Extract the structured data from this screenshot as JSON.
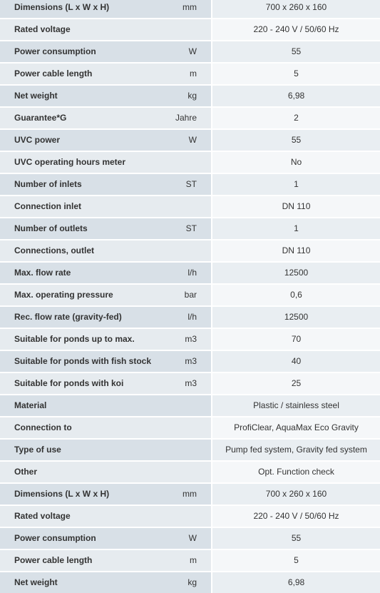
{
  "table": {
    "rows": [
      [
        "Dimensions (L x W x H)",
        "mm",
        "700 x 260 x 160"
      ],
      [
        "Rated voltage",
        null,
        "220 - 240 V / 50/60 Hz"
      ],
      [
        "Power consumption",
        "W",
        "55"
      ],
      [
        "Power cable length",
        "m",
        "5"
      ],
      [
        "Net weight",
        "kg",
        "6,98"
      ],
      [
        "Guarantee*G",
        "Jahre",
        "2"
      ],
      [
        "UVC power",
        "W",
        "55"
      ],
      [
        "UVC operating hours meter",
        null,
        "No"
      ],
      [
        "Number of inlets",
        "ST",
        "1"
      ],
      [
        "Connection inlet",
        null,
        "DN 110"
      ],
      [
        "Number of outlets",
        "ST",
        "1"
      ],
      [
        "Connections, outlet",
        null,
        "DN 110"
      ],
      [
        "Max. flow rate",
        "l/h",
        "12500"
      ],
      [
        "Max. operating pressure",
        "bar",
        "0,6"
      ],
      [
        "Rec. flow rate (gravity-fed)",
        "l/h",
        "12500"
      ],
      [
        "Suitable for ponds up to max.",
        "m3",
        "70"
      ],
      [
        "Suitable for ponds with fish stock",
        "m3",
        "40"
      ],
      [
        "Suitable for ponds with koi",
        "m3",
        "25"
      ],
      [
        "Material",
        null,
        "Plastic / stainless steel"
      ],
      [
        "Connection to",
        null,
        "ProfiClear, AquaMax Eco Gravity"
      ],
      [
        "Type of use",
        null,
        "Pump fed system, Gravity fed system"
      ],
      [
        "Other",
        null,
        "Opt. Function check"
      ],
      [
        "Dimensions (L x W x H)",
        "mm",
        "700 x 260 x 160"
      ],
      [
        "Rated voltage",
        null,
        "220 - 240 V / 50/60 Hz"
      ],
      [
        "Power consumption",
        "W",
        "55"
      ],
      [
        "Power cable length",
        "m",
        "5"
      ],
      [
        "Net weight",
        "kg",
        "6,98"
      ]
    ]
  }
}
